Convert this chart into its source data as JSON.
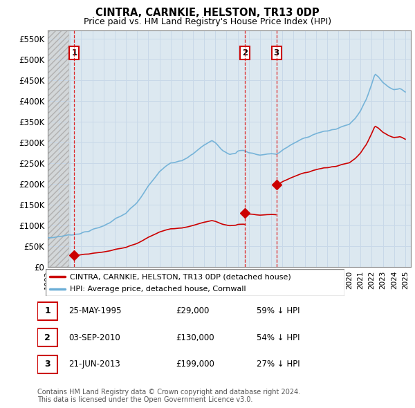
{
  "title": "CINTRA, CARNKIE, HELSTON, TR13 0DP",
  "subtitle": "Price paid vs. HM Land Registry's House Price Index (HPI)",
  "hpi_label": "HPI: Average price, detached house, Cornwall",
  "property_label": "CINTRA, CARNKIE, HELSTON, TR13 0DP (detached house)",
  "footnote1": "Contains HM Land Registry data © Crown copyright and database right 2024.",
  "footnote2": "This data is licensed under the Open Government Licence v3.0.",
  "ylim": [
    0,
    570000
  ],
  "yticks": [
    0,
    50000,
    100000,
    150000,
    200000,
    250000,
    300000,
    350000,
    400000,
    450000,
    500000,
    550000
  ],
  "ytick_labels": [
    "£0",
    "£50K",
    "£100K",
    "£150K",
    "£200K",
    "£250K",
    "£300K",
    "£350K",
    "£400K",
    "£450K",
    "£500K",
    "£550K"
  ],
  "sales": [
    {
      "num": 1,
      "date": "25-MAY-1995",
      "price": 29000,
      "pct": "59%",
      "x_year": 1995.38
    },
    {
      "num": 2,
      "date": "03-SEP-2010",
      "price": 130000,
      "pct": "54%",
      "x_year": 2010.67
    },
    {
      "num": 3,
      "date": "21-JUN-2013",
      "price": 199000,
      "pct": "27%",
      "x_year": 2013.47
    }
  ],
  "hpi_color": "#6baed6",
  "property_color": "#cc0000",
  "grid_color": "#c8d8e8",
  "bg_color": "#dce8f0",
  "xlim_start": 1993.0,
  "xlim_end": 2025.5
}
